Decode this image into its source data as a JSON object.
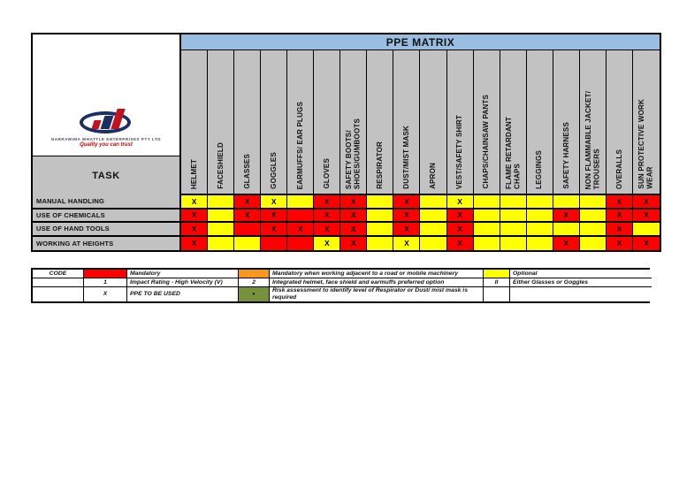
{
  "page_title": "PPE MATRIX",
  "logo": {
    "company_name": "NARRAWIMA WHATTLE ENTERPRISES PTY LTD",
    "tagline": "Quality you can trust"
  },
  "task_label": "TASK",
  "matrix": {
    "mark": "X",
    "columns": [
      "HELMET",
      "FACESHIELD",
      "GLASSES",
      "GOGGLES",
      "EARMUFFS/ EAR PLUGS",
      "GLOVES",
      "SAFETY BOOTS/\nSHOES/GUMBOOTS",
      "RESPIRATOR",
      "DUST/MIST MASK",
      "APRON",
      "VEST/SAFETY SHIRT",
      "CHAPS/CHAINSAW PANTS",
      "FLAME RETARDANT\nCHAPS",
      "LEGGINGS",
      "SAFETY HARNESS",
      "NON FLAMMABLE JACKET/\nTROUSERS",
      "OVERALLS",
      "SUN PROTECTIVE WORK\nWEAR"
    ],
    "rows": [
      {
        "task": "MANUAL HANDLING",
        "cells": [
          "YX",
          "Y",
          "RX",
          "YX",
          "Y",
          "RX",
          "RX",
          "Y",
          "RX",
          "Y",
          "YX",
          "Y",
          "Y",
          "Y",
          "Y",
          "Y",
          "RX",
          "RX"
        ]
      },
      {
        "task": "USE OF CHEMICALS",
        "cells": [
          "RX",
          "Y",
          "RX",
          "RX",
          "R",
          "RX",
          "RX",
          "Y",
          "RX",
          "Y",
          "RX",
          "Y",
          "Y",
          "Y",
          "RX",
          "Y",
          "RX",
          "RX"
        ]
      },
      {
        "task": "USE OF HAND TOOLS",
        "cells": [
          "RX",
          "Y",
          "R",
          "RX",
          "RX",
          "RX",
          "RX",
          "Y",
          "RX",
          "Y",
          "RX",
          "Y",
          "Y",
          "Y",
          "Y",
          "Y",
          "RX",
          "Y"
        ]
      },
      {
        "task": "WORKING AT HEIGHTS",
        "cells": [
          "RX",
          "Y",
          "Y",
          "R",
          "R",
          "YX",
          "RX",
          "Y",
          "YX",
          "Y",
          "RX",
          "Y",
          "Y",
          "Y",
          "RX",
          "Y",
          "RX",
          "RX"
        ]
      }
    ]
  },
  "legend": {
    "rows": [
      [
        {
          "text": "CODE"
        },
        {
          "fill": "red"
        },
        {
          "text": "Mandatory"
        },
        {
          "fill": "orange"
        },
        {
          "text": "Mandatory when working adjacent to a road or mobile machinery"
        },
        {
          "fill": "yellow"
        },
        {
          "text": "Optional"
        }
      ],
      [
        {
          "text": ""
        },
        {
          "text": "1"
        },
        {
          "text": "Impact Rating - High Velocity (V)"
        },
        {
          "text": "2"
        },
        {
          "text": "Integrated helmet, face shield and earmuffs preferred option"
        },
        {
          "text": "II"
        },
        {
          "text": "Either Glasses or Goggles"
        }
      ],
      [
        {
          "text": ""
        },
        {
          "text": "X"
        },
        {
          "text": "PPE TO BE USED"
        },
        {
          "fill": "green",
          "text": "•"
        },
        {
          "text": "Risk assessment to identify level of Respirator or Dust/ mist mask is required"
        },
        {
          "text": ""
        },
        {
          "text": ""
        }
      ]
    ]
  },
  "colors": {
    "mandatory_red": "#FF0000",
    "optional_yellow": "#FFFF00",
    "road_adjacent_orange": "#F7971E",
    "risk_assessment_green": "#76923C",
    "title_blue": "#99BEE2",
    "header_gray": "#C2C2C2"
  }
}
